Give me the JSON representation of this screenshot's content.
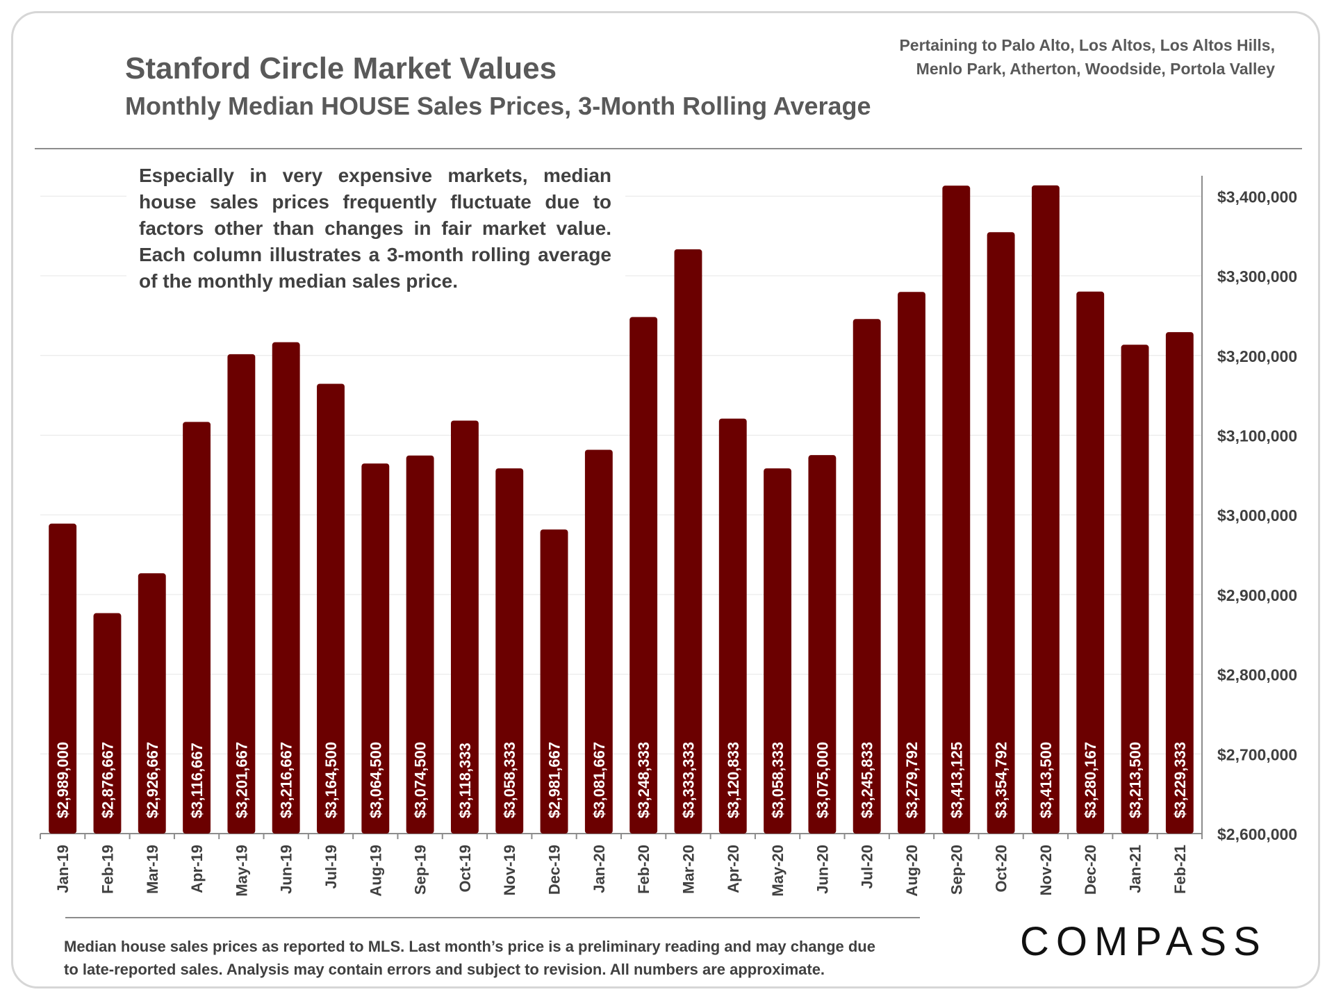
{
  "header": {
    "title": "Stanford Circle Market Values",
    "subtitle": "Monthly Median HOUSE Sales Prices, 3-Month Rolling Average",
    "pertaining_line1": "Pertaining to Palo Alto, Los Altos, Los Altos Hills,",
    "pertaining_line2": "Menlo Park, Atherton, Woodside, Portola Valley"
  },
  "note": "Especially in very expensive markets, median house sales prices frequently fluctuate due to factors other than changes in fair market value. Each column illustrates a 3-month rolling average of the monthly median sales price.",
  "footer": {
    "line1": "Median house sales prices as reported to MLS. Last month’s price is a preliminary reading and may change due",
    "line2": "to late-reported sales. Analysis may contain errors and subject to revision. All numbers are approximate.",
    "logo_text": "COMPASS"
  },
  "colors": {
    "bar": "#6b0000",
    "label": "#ffffff",
    "axis": "#404040",
    "grid": "#e6e6e6"
  },
  "chart_data": {
    "type": "bar",
    "title": "Stanford Circle Market Values",
    "subtitle": "Monthly Median HOUSE Sales Prices, 3-Month Rolling Average",
    "xlabel": "",
    "ylabel": "",
    "ylim": [
      2600000,
      3450000
    ],
    "y_axis_side": "right",
    "grid": true,
    "yticks": [
      2600000,
      2700000,
      2800000,
      2900000,
      3000000,
      3100000,
      3200000,
      3300000,
      3400000
    ],
    "ytick_labels": [
      "$2,600,000",
      "$2,700,000",
      "$2,800,000",
      "$2,900,000",
      "$3,000,000",
      "$3,100,000",
      "$3,200,000",
      "$3,300,000",
      "$3,400,000"
    ],
    "categories": [
      "Jan-19",
      "Feb-19",
      "Mar-19",
      "Apr-19",
      "May-19",
      "Jun-19",
      "Jul-19",
      "Aug-19",
      "Sep-19",
      "Oct-19",
      "Nov-19",
      "Dec-19",
      "Jan-20",
      "Feb-20",
      "Mar-20",
      "Apr-20",
      "May-20",
      "Jun-20",
      "Jul-20",
      "Aug-20",
      "Sep-20",
      "Oct-20",
      "Nov-20",
      "Dec-20",
      "Jan-21",
      "Feb-21"
    ],
    "values": [
      2989000,
      2876667,
      2926667,
      3116667,
      3201667,
      3216667,
      3164500,
      3064500,
      3074500,
      3118333,
      3058333,
      2981667,
      3081667,
      3248333,
      3333333,
      3120833,
      3058333,
      3075000,
      3245833,
      3279792,
      3413125,
      3354792,
      3413500,
      3280167,
      3213500,
      3229333
    ],
    "value_labels": [
      "$2,989,000",
      "$2,876,667",
      "$2,926,667",
      "$3,116,667",
      "$3,201,667",
      "$3,216,667",
      "$3,164,500",
      "$3,064,500",
      "$3,074,500",
      "$3,118,333",
      "$3,058,333",
      "$2,981,667",
      "$3,081,667",
      "$3,248,333",
      "$3,333,333",
      "$3,120,833",
      "$3,058,333",
      "$3,075,000",
      "$3,245,833",
      "$3,279,792",
      "$3,413,125",
      "$3,354,792",
      "$3,413,500",
      "$3,280,167",
      "$3,213,500",
      "$3,229,333"
    ]
  }
}
